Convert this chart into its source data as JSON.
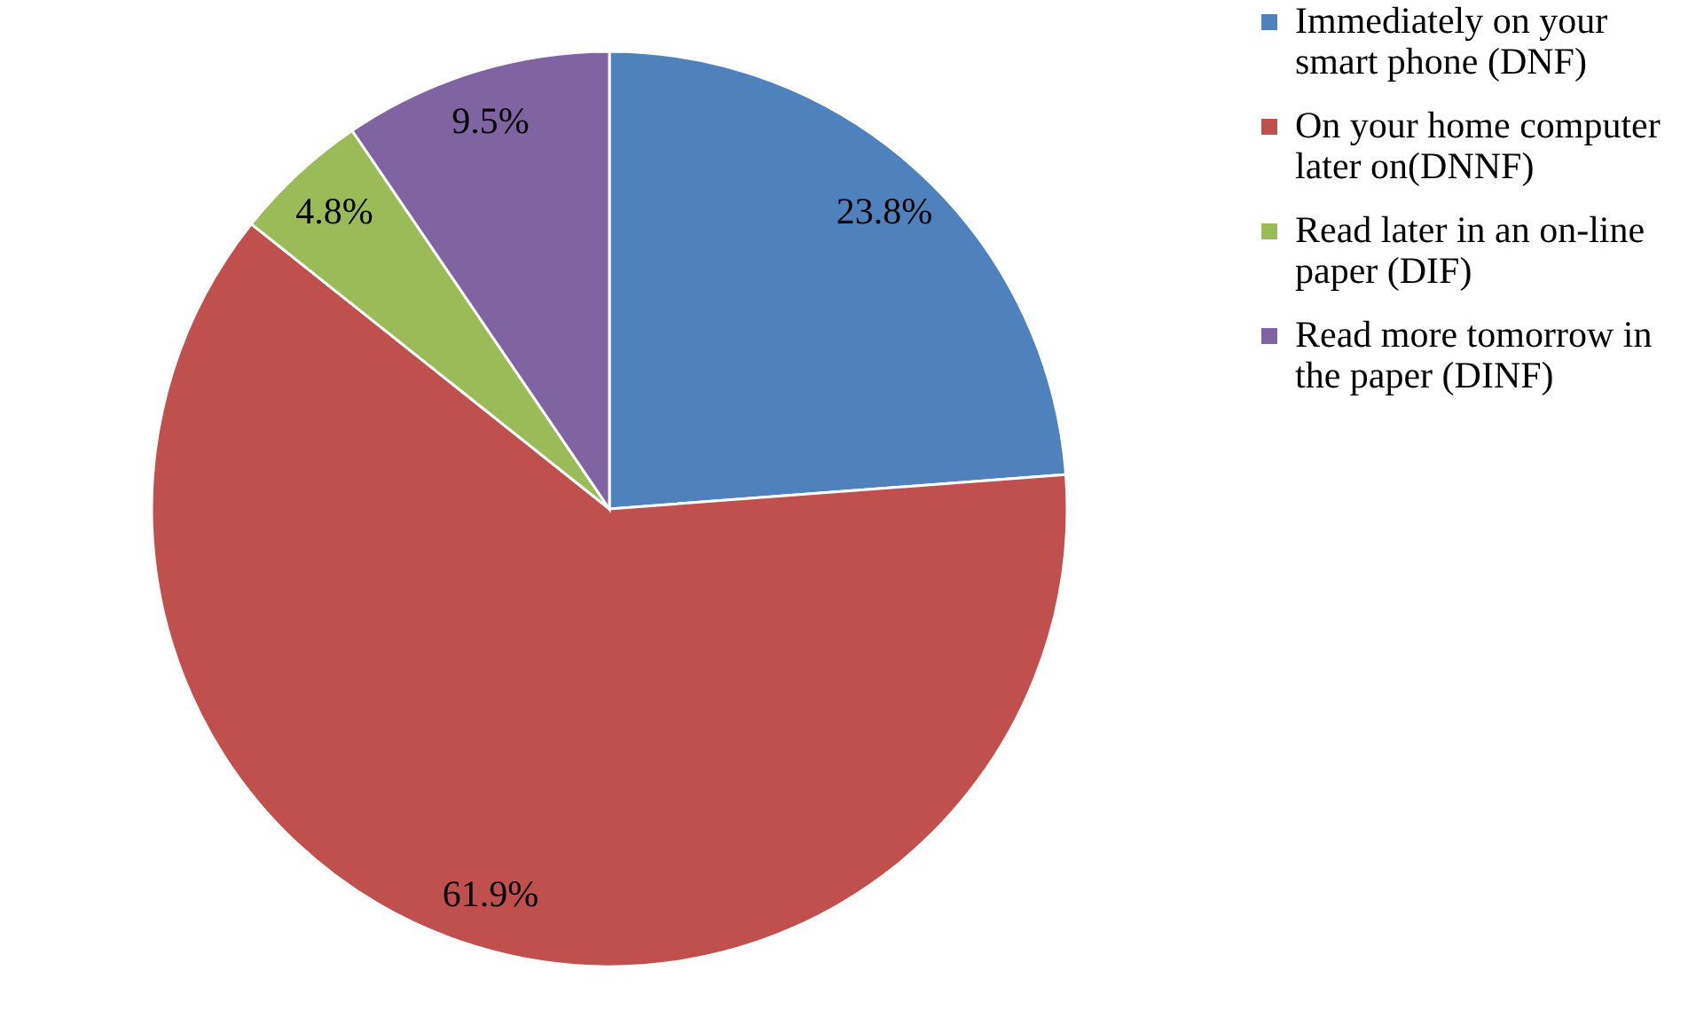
{
  "chart_data": {
    "type": "pie",
    "categories": [
      "Immediately on your smart phone (DNF)",
      "On your home computer later on(DNNF)",
      "Read later in an on-line paper (DIF)",
      "Read more tomorrow in the paper (DINF)"
    ],
    "values": [
      23.8,
      61.9,
      4.8,
      9.5
    ],
    "colors": [
      "#4f81bd",
      "#c0504d",
      "#9bbb59",
      "#8064a2"
    ],
    "value_labels": [
      "23.8%",
      "61.9%",
      "4.8%",
      "9.5%"
    ],
    "legend": "right"
  }
}
